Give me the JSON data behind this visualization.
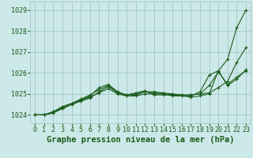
{
  "background_color": "#cce8e8",
  "grid_color": "#aacccc",
  "line_color": "#1a5c1a",
  "xlabel": "Graphe pression niveau de la mer (hPa)",
  "xlabel_fontsize": 7.5,
  "tick_fontsize": 6,
  "xlim": [
    -0.5,
    23.5
  ],
  "ylim": [
    1023.6,
    1029.4
  ],
  "yticks": [
    1024,
    1025,
    1026,
    1027,
    1028,
    1029
  ],
  "xticks": [
    0,
    1,
    2,
    3,
    4,
    5,
    6,
    7,
    8,
    9,
    10,
    11,
    12,
    13,
    14,
    15,
    16,
    17,
    18,
    19,
    20,
    21,
    22,
    23
  ],
  "series": [
    [
      1024.0,
      1024.0,
      1024.1,
      1024.3,
      1024.5,
      1024.65,
      1024.8,
      1025.1,
      1025.35,
      1025.05,
      1024.95,
      1025.05,
      1025.15,
      1024.95,
      1024.95,
      1024.95,
      1024.9,
      1024.95,
      1025.0,
      1025.05,
      1025.3,
      1025.6,
      1026.5,
      1027.2
    ],
    [
      1024.0,
      1024.0,
      1024.15,
      1024.35,
      1024.5,
      1024.7,
      1024.85,
      1025.05,
      1025.25,
      1025.0,
      1024.9,
      1024.95,
      1025.1,
      1025.1,
      1025.05,
      1025.0,
      1024.95,
      1024.95,
      1025.0,
      1025.4,
      1026.05,
      1025.45,
      1025.8,
      1026.1
    ],
    [
      1024.0,
      1024.0,
      1024.1,
      1024.3,
      1024.5,
      1024.7,
      1024.9,
      1025.3,
      1025.45,
      1025.1,
      1024.9,
      1024.9,
      1025.0,
      1025.0,
      1025.0,
      1024.9,
      1024.9,
      1024.85,
      1024.9,
      1025.0,
      1026.1,
      1026.65,
      1028.15,
      1029.0
    ],
    [
      1024.0,
      1024.0,
      1024.15,
      1024.4,
      1024.55,
      1024.75,
      1024.95,
      1025.2,
      1025.4,
      1025.1,
      1024.95,
      1025.0,
      1025.1,
      1025.05,
      1025.0,
      1024.95,
      1024.95,
      1024.9,
      1025.1,
      1025.9,
      1026.1,
      1025.4,
      1025.7,
      1026.15
    ]
  ]
}
